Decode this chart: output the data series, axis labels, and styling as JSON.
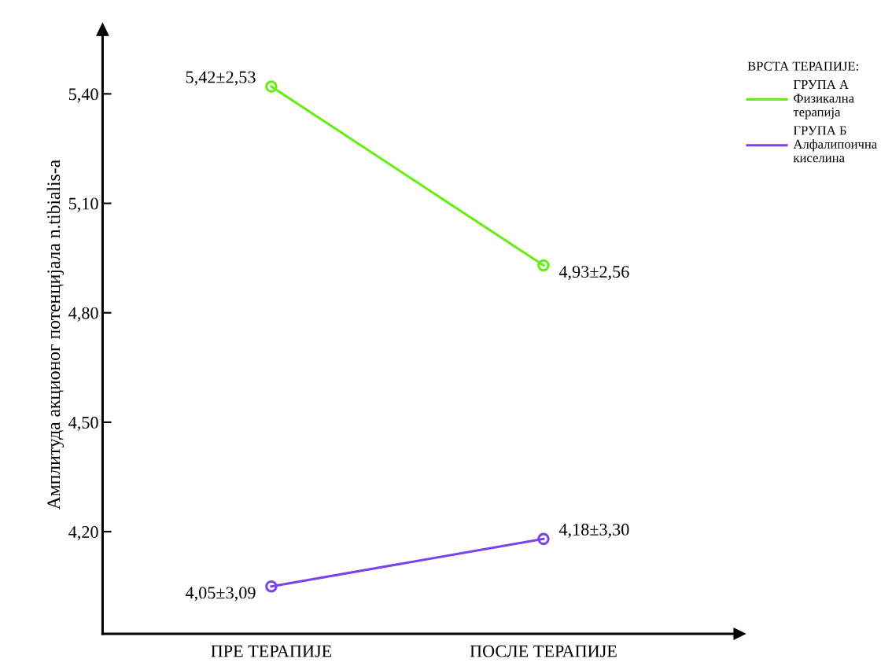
{
  "chart_data": {
    "type": "line",
    "ylabel": "Амплитуда акционог потенцијала n.tibialis-a",
    "legend_title": "ВРСТА ТЕРАПИЈЕ:",
    "categories": [
      "ПРЕ ТЕРАПИЈЕ",
      "ПОСЛЕ ТЕРАПИЈЕ"
    ],
    "series": [
      {
        "name": "ГРУПА А\nФизикална\nтерапија",
        "color": "#66ee11",
        "values": [
          5.42,
          4.93
        ],
        "value_labels": [
          "5,42±2,53",
          "4,93±2,56"
        ]
      },
      {
        "name": "ГРУПА Б\nАлфалипоична\nкиселина",
        "color": "#7744ee",
        "values": [
          4.05,
          4.18
        ],
        "value_labels": [
          "4,05±3,09",
          "4,18±3,30"
        ]
      }
    ],
    "ylim": [
      3.92,
      5.56
    ],
    "yticks": [
      {
        "value": 4.2,
        "label": "4,20"
      },
      {
        "value": 4.5,
        "label": "4,50"
      },
      {
        "value": 4.8,
        "label": "4,80"
      },
      {
        "value": 5.1,
        "label": "5,10"
      },
      {
        "value": 5.4,
        "label": "5,40"
      }
    ],
    "marker": "circle",
    "line_style": "solid",
    "grid": false,
    "legend": "top right"
  }
}
